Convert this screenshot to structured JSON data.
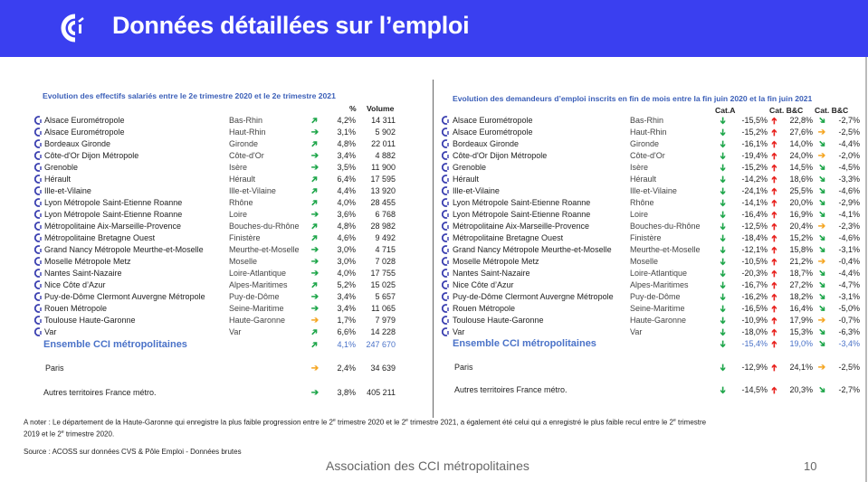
{
  "header": {
    "title": "Données détaillées sur l’emploi"
  },
  "colors": {
    "header_bg": "#3a3ff0",
    "accent_blue": "#3b5fb8",
    "green": "#1ea64a",
    "orange": "#f5a623",
    "red": "#e8201c"
  },
  "left": {
    "title": "Evolution des effectifs salariés entre le 2e trimestre 2020 et le 2e trimestre 2021",
    "headers": {
      "pct": "%",
      "volume": "Volume"
    },
    "rows": [
      {
        "name": "Alsace Eurométropole",
        "dept": "Bas-Rhin",
        "arrow": "up-right-green",
        "pct": "4,2%",
        "volume": "14 311"
      },
      {
        "name": "Alsace Eurométropole",
        "dept": "Haut-Rhin",
        "arrow": "right-green",
        "pct": "3,1%",
        "volume": "5 902"
      },
      {
        "name": "Bordeaux Gironde",
        "dept": "Gironde",
        "arrow": "up-right-green",
        "pct": "4,8%",
        "volume": "22 011"
      },
      {
        "name": "Côte-d'Or Dijon Métropole",
        "dept": "Côte-d'Or",
        "arrow": "right-green",
        "pct": "3,4%",
        "volume": "4 882"
      },
      {
        "name": "Grenoble",
        "dept": "Isère",
        "arrow": "right-green",
        "pct": "3,5%",
        "volume": "11 900"
      },
      {
        "name": "Hérault",
        "dept": "Hérault",
        "arrow": "up-right-green",
        "pct": "6,4%",
        "volume": "17 595"
      },
      {
        "name": "Ille-et-Vilaine",
        "dept": "Ille-et-Vilaine",
        "arrow": "up-right-green",
        "pct": "4,4%",
        "volume": "13 920"
      },
      {
        "name": "Lyon Métropole Saint-Etienne Roanne",
        "dept": "Rhône",
        "arrow": "up-right-green",
        "pct": "4,0%",
        "volume": "28 455"
      },
      {
        "name": "Lyon Métropole Saint-Etienne Roanne",
        "dept": "Loire",
        "arrow": "right-green",
        "pct": "3,6%",
        "volume": "6 768"
      },
      {
        "name": "Métropolitaine Aix-Marseille-Provence",
        "dept": "Bouches-du-Rhône",
        "arrow": "up-right-green",
        "pct": "4,8%",
        "volume": "28 982"
      },
      {
        "name": "Métropolitaine Bretagne Ouest",
        "dept": "Finistère",
        "arrow": "up-right-green",
        "pct": "4,6%",
        "volume": "9 492"
      },
      {
        "name": "Grand Nancy Métropole Meurthe-et-Moselle",
        "dept": "Meurthe-et-Moselle",
        "arrow": "right-green",
        "pct": "3,0%",
        "volume": "4 715"
      },
      {
        "name": "Moselle Métropole Metz",
        "dept": "Moselle",
        "arrow": "right-green",
        "pct": "3,0%",
        "volume": "7 028"
      },
      {
        "name": "Nantes Saint-Nazaire",
        "dept": "Loire-Atlantique",
        "arrow": "right-green",
        "pct": "4,0%",
        "volume": "17 755"
      },
      {
        "name": "Nice Côte d’Azur",
        "dept": "Alpes-Maritimes",
        "arrow": "up-right-green",
        "pct": "5,2%",
        "volume": "15 025"
      },
      {
        "name": "Puy-de-Dôme Clermont Auvergne Métropole",
        "dept": "Puy-de-Dôme",
        "arrow": "right-green",
        "pct": "3,4%",
        "volume": "5 657"
      },
      {
        "name": "Rouen Métropole",
        "dept": "Seine-Maritime",
        "arrow": "right-green",
        "pct": "3,4%",
        "volume": "11 065"
      },
      {
        "name": "Toulouse Haute-Garonne",
        "dept": "Haute-Garonne",
        "arrow": "right-orange",
        "pct": "1,7%",
        "volume": "7 979"
      },
      {
        "name": "Var",
        "dept": "Var",
        "arrow": "up-right-green",
        "pct": "6,6%",
        "volume": "14 228"
      }
    ],
    "total": {
      "name": "Ensemble CCI métropolitaines",
      "arrow": "up-right-green",
      "pct": "4,1%",
      "volume": "247 670"
    },
    "extra": [
      {
        "name": "Paris",
        "arrow": "right-orange",
        "pct": "2,4%",
        "volume": "34 639"
      },
      {
        "name": "Autres territoires France métro.",
        "arrow": "right-green",
        "pct": "3,8%",
        "volume": "405 211"
      }
    ]
  },
  "right": {
    "title": "Evolution des demandeurs d’emploi inscrits en fin de mois entre la fin juin 2020 et la fin juin 2021",
    "headers": {
      "a": "Cat.A",
      "b": "Cat. B&C",
      "c": "Cat. B&C"
    },
    "rows": [
      {
        "name": "Alsace Eurométropole",
        "dept": "Bas-Rhin",
        "a": "-15,5%",
        "b": "22,8%",
        "c": "-2,7%",
        "c_arrow": "down-right-green"
      },
      {
        "name": "Alsace Eurométropole",
        "dept": "Haut-Rhin",
        "a": "-15,2%",
        "b": "27,6%",
        "c": "-2,5%",
        "c_arrow": "right-orange"
      },
      {
        "name": "Bordeaux Gironde",
        "dept": "Gironde",
        "a": "-16,1%",
        "b": "14,0%",
        "c": "-4,4%",
        "c_arrow": "down-right-green"
      },
      {
        "name": "Côte-d'Or Dijon Métropole",
        "dept": "Côte-d'Or",
        "a": "-19,4%",
        "b": "24,0%",
        "c": "-2,0%",
        "c_arrow": "right-orange"
      },
      {
        "name": "Grenoble",
        "dept": "Isère",
        "a": "-15,2%",
        "b": "14,5%",
        "c": "-4,5%",
        "c_arrow": "down-right-green"
      },
      {
        "name": "Hérault",
        "dept": "Hérault",
        "a": "-14,2%",
        "b": "18,6%",
        "c": "-3,3%",
        "c_arrow": "down-right-green"
      },
      {
        "name": "Ille-et-Vilaine",
        "dept": "Ille-et-Vilaine",
        "a": "-24,1%",
        "b": "25,5%",
        "c": "-4,6%",
        "c_arrow": "down-right-green"
      },
      {
        "name": "Lyon Métropole Saint-Etienne Roanne",
        "dept": "Rhône",
        "a": "-14,1%",
        "b": "20,0%",
        "c": "-2,9%",
        "c_arrow": "down-right-green"
      },
      {
        "name": "Lyon Métropole Saint-Etienne Roanne",
        "dept": "Loire",
        "a": "-16,4%",
        "b": "16,9%",
        "c": "-4,1%",
        "c_arrow": "down-right-green"
      },
      {
        "name": "Métropolitaine Aix-Marseille-Provence",
        "dept": "Bouches-du-Rhône",
        "a": "-12,5%",
        "b": "20,4%",
        "c": "-2,3%",
        "c_arrow": "right-orange"
      },
      {
        "name": "Métropolitaine Bretagne Ouest",
        "dept": "Finistère",
        "a": "-18,4%",
        "b": "15,2%",
        "c": "-4,6%",
        "c_arrow": "down-right-green"
      },
      {
        "name": "Grand Nancy Métropole Meurthe-et-Moselle",
        "dept": "Meurthe-et-Moselle",
        "a": "-12,1%",
        "b": "15,8%",
        "c": "-3,1%",
        "c_arrow": "down-right-green"
      },
      {
        "name": "Moselle Métropole Metz",
        "dept": "Moselle",
        "a": "-10,5%",
        "b": "21,2%",
        "c": "-0,4%",
        "c_arrow": "right-orange"
      },
      {
        "name": "Nantes Saint-Nazaire",
        "dept": "Loire-Atlantique",
        "a": "-20,3%",
        "b": "18,7%",
        "c": "-4,4%",
        "c_arrow": "down-right-green"
      },
      {
        "name": "Nice Côte d’Azur",
        "dept": "Alpes-Maritimes",
        "a": "-16,7%",
        "b": "27,2%",
        "c": "-4,7%",
        "c_arrow": "down-right-green"
      },
      {
        "name": "Puy-de-Dôme Clermont Auvergne Métropole",
        "dept": "Puy-de-Dôme",
        "a": "-16,2%",
        "b": "18,2%",
        "c": "-3,1%",
        "c_arrow": "down-right-green"
      },
      {
        "name": "Rouen Métropole",
        "dept": "Seine-Maritime",
        "a": "-16,5%",
        "b": "16,4%",
        "c": "-5,0%",
        "c_arrow": "down-right-green"
      },
      {
        "name": "Toulouse Haute-Garonne",
        "dept": "Haute-Garonne",
        "a": "-10,9%",
        "b": "17,9%",
        "c": "-0,7%",
        "c_arrow": "right-orange"
      },
      {
        "name": "Var",
        "dept": "Var",
        "a": "-18,0%",
        "b": "15,3%",
        "c": "-6,3%",
        "c_arrow": "down-right-green"
      }
    ],
    "total": {
      "name": "Ensemble CCI métropolitaines",
      "a": "-15,4%",
      "b": "19,0%",
      "c": "-3,4%",
      "c_arrow": "down-right-green"
    },
    "extra": [
      {
        "name": "Paris",
        "a": "-12,9%",
        "b": "24,1%",
        "c": "-2,5%",
        "c_arrow": "right-orange"
      },
      {
        "name": "Autres territoires France métro.",
        "a": "-14,5%",
        "b": "20,3%",
        "c": "-2,7%",
        "c_arrow": "down-right-green"
      }
    ]
  },
  "note": {
    "prefix": "A noter :  Le département de la Haute-Garonne qui enregistre la plus faible progression entre le 2",
    "sup": "e",
    "mid1": " trimestre 2020 et le 2",
    "mid2": " trimestre 2021, a également été celui qui a enregistré le plus faible recul entre le 2",
    "mid3": " trimestre 2019 et le 2",
    "end": " trimestre 2020."
  },
  "source": "Source : ACOSS sur données CVS & Pôle Emploi - Données brutes",
  "footer": {
    "org": "Association des CCI métropolitaines",
    "page": "10"
  }
}
